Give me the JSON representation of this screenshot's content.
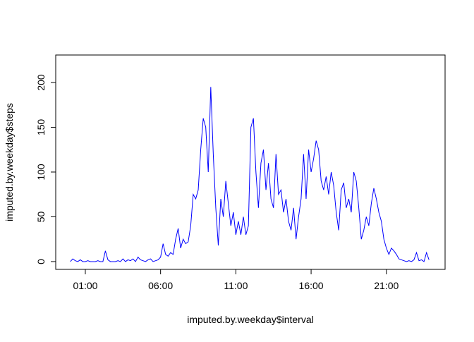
{
  "chart_data": {
    "type": "line",
    "xlabel": "imputed.by.weekday$interval",
    "ylabel": "imputed.by.weekday$steps",
    "x": [
      0,
      10,
      20,
      30,
      40,
      50,
      60,
      70,
      80,
      90,
      100,
      110,
      120,
      130,
      140,
      150,
      160,
      170,
      180,
      190,
      200,
      210,
      220,
      230,
      240,
      250,
      260,
      270,
      280,
      290,
      300,
      310,
      320,
      330,
      340,
      350,
      360,
      370,
      380,
      390,
      400,
      410,
      420,
      430,
      440,
      450,
      460,
      470,
      480,
      490,
      500,
      510,
      520,
      530,
      540,
      550,
      560,
      570,
      580,
      590,
      600,
      610,
      620,
      630,
      640,
      650,
      660,
      670,
      680,
      690,
      700,
      710,
      720,
      730,
      740,
      750,
      760,
      770,
      780,
      790,
      800,
      810,
      820,
      830,
      840,
      850,
      860,
      870,
      880,
      890,
      900,
      910,
      920,
      930,
      940,
      950,
      960,
      970,
      980,
      990,
      1000,
      1010,
      1020,
      1030,
      1040,
      1050,
      1060,
      1070,
      1080,
      1090,
      1100,
      1110,
      1120,
      1130,
      1140,
      1150,
      1160,
      1170,
      1180,
      1190,
      1200,
      1210,
      1220,
      1230,
      1240,
      1250,
      1260,
      1270,
      1280,
      1290,
      1300,
      1310,
      1320,
      1330,
      1340,
      1350,
      1360,
      1370,
      1380,
      1390,
      1400,
      1410,
      1420,
      1430
    ],
    "series": [
      {
        "color": "#0000ff",
        "values": [
          0,
          3,
          1,
          0,
          2,
          0,
          0,
          1,
          0,
          0,
          0,
          1,
          0,
          0,
          12,
          2,
          0,
          0,
          0,
          1,
          0,
          3,
          0,
          2,
          1,
          3,
          0,
          5,
          2,
          1,
          0,
          2,
          3,
          0,
          1,
          2,
          5,
          20,
          8,
          6,
          10,
          8,
          25,
          37,
          15,
          25,
          20,
          22,
          40,
          75,
          70,
          80,
          125,
          160,
          150,
          100,
          195,
          120,
          60,
          18,
          70,
          50,
          90,
          65,
          40,
          55,
          30,
          45,
          30,
          50,
          30,
          40,
          150,
          160,
          100,
          60,
          110,
          125,
          80,
          110,
          70,
          60,
          120,
          75,
          80,
          55,
          70,
          45,
          35,
          60,
          25,
          50,
          70,
          120,
          70,
          125,
          100,
          115,
          135,
          125,
          90,
          80,
          95,
          75,
          100,
          85,
          55,
          35,
          80,
          88,
          60,
          70,
          55,
          100,
          90,
          60,
          25,
          35,
          50,
          40,
          65,
          82,
          70,
          55,
          45,
          25,
          15,
          8,
          15,
          12,
          8,
          3,
          2,
          1,
          0,
          1,
          0,
          2,
          10,
          1,
          2,
          0,
          10,
          2
        ]
      }
    ],
    "xlim": [
      -58,
      1494
    ],
    "xticks": [
      {
        "value": 60,
        "label": "01:00"
      },
      {
        "value": 360,
        "label": "06:00"
      },
      {
        "value": 660,
        "label": "11:00"
      },
      {
        "value": 960,
        "label": "16:00"
      },
      {
        "value": 1260,
        "label": "21:00"
      }
    ],
    "ylim": [
      -8.7,
      230.7
    ],
    "yticks": [
      0,
      50,
      100,
      150,
      200
    ]
  }
}
